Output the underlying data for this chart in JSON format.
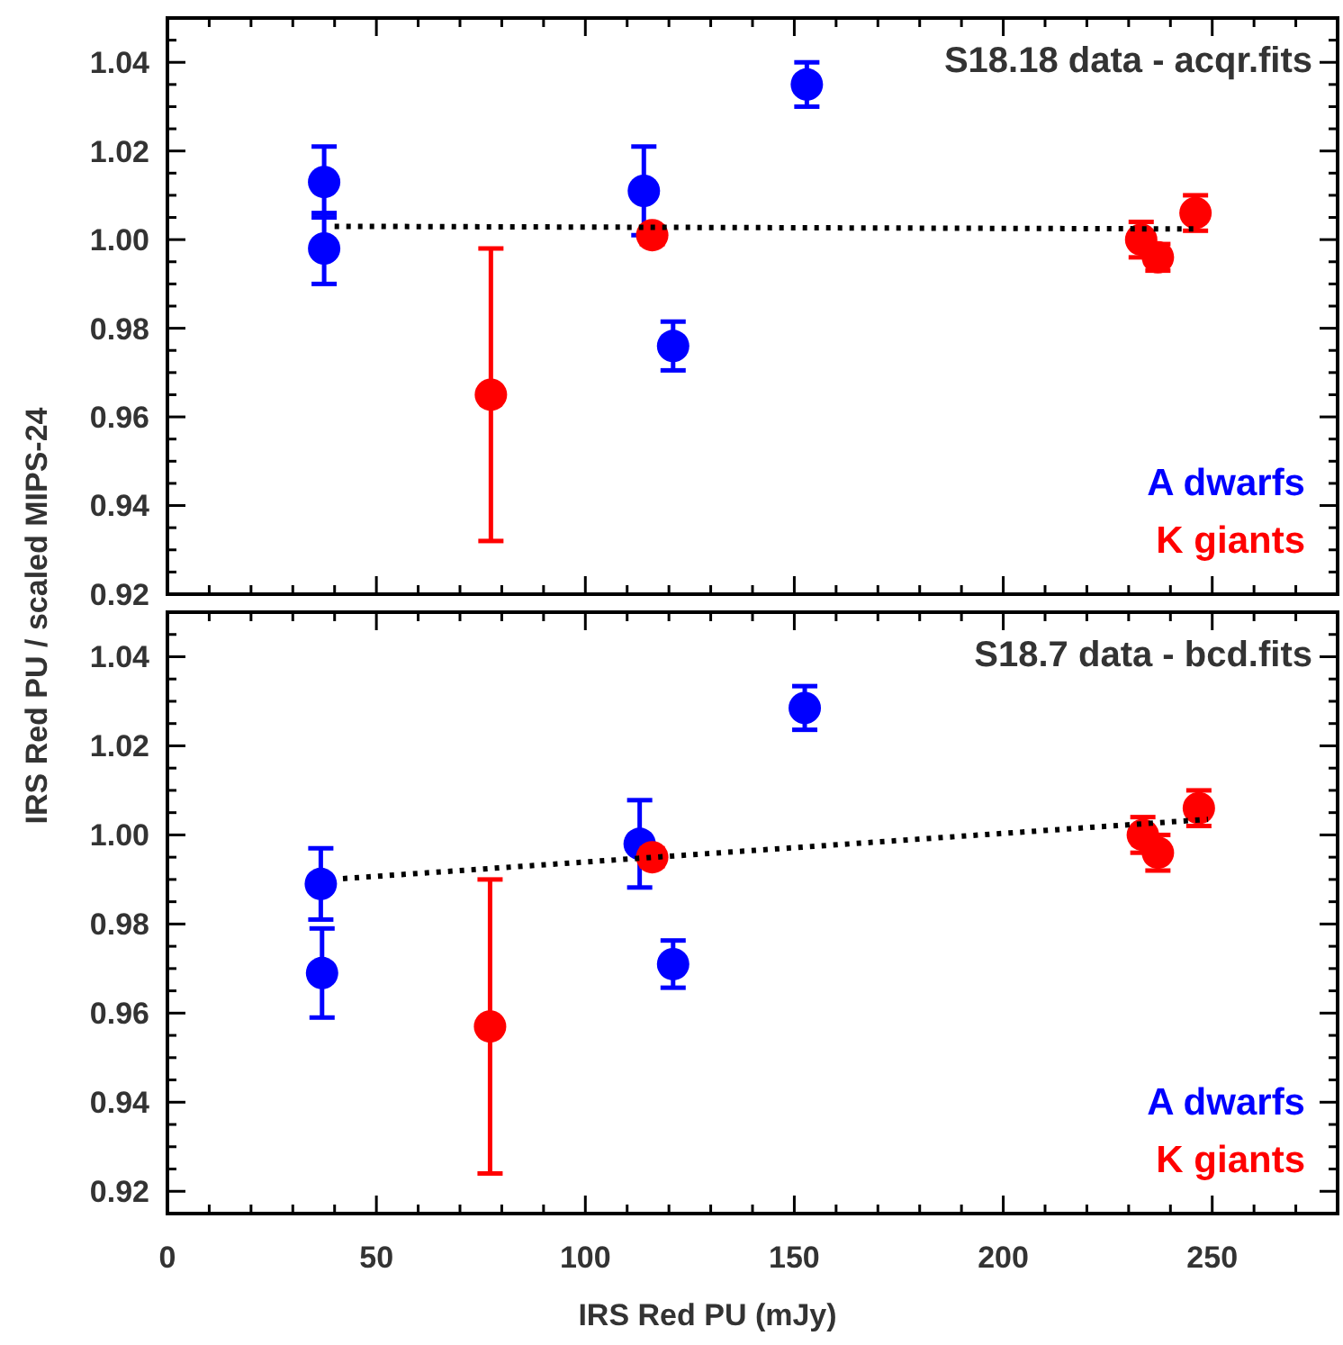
{
  "chart_data": [
    {
      "type": "scatter",
      "title": "S18.18 data - acqr.fits",
      "ylabel": "IRS Red PU / scaled MIPS-24",
      "legend": "bottom right",
      "tick_labels": "y",
      "marker": "circle",
      "xlim": [
        0,
        280
      ],
      "ylim": [
        0.92,
        1.05
      ],
      "xticks": [
        0,
        {
          "value": 10,
          "label": null
        },
        {
          "value": 20,
          "label": null
        },
        {
          "value": 30,
          "label": null
        },
        {
          "value": 40,
          "label": null
        },
        50,
        {
          "value": 60,
          "label": null
        },
        {
          "value": 70,
          "label": null
        },
        {
          "value": 80,
          "label": null
        },
        {
          "value": 90,
          "label": null
        },
        100,
        {
          "value": 110,
          "label": null
        },
        {
          "value": 120,
          "label": null
        },
        {
          "value": 130,
          "label": null
        },
        {
          "value": 140,
          "label": null
        },
        150,
        {
          "value": 160,
          "label": null
        },
        {
          "value": 170,
          "label": null
        },
        {
          "value": 180,
          "label": null
        },
        {
          "value": 190,
          "label": null
        },
        200,
        {
          "value": 210,
          "label": null
        },
        {
          "value": 220,
          "label": null
        },
        {
          "value": 230,
          "label": null
        },
        {
          "value": 240,
          "label": null
        },
        250,
        {
          "value": 260,
          "label": null
        },
        {
          "value": 270,
          "label": null
        }
      ],
      "yticks": [
        0.92,
        {
          "value": 0.925,
          "label": null
        },
        {
          "value": 0.93,
          "label": null
        },
        {
          "value": 0.935,
          "label": null
        },
        0.94,
        {
          "value": 0.945,
          "label": null
        },
        {
          "value": 0.95,
          "label": null
        },
        {
          "value": 0.955,
          "label": null
        },
        0.96,
        {
          "value": 0.965,
          "label": null
        },
        {
          "value": 0.97,
          "label": null
        },
        {
          "value": 0.975,
          "label": null
        },
        0.98,
        {
          "value": 0.985,
          "label": null
        },
        {
          "value": 0.99,
          "label": null
        },
        {
          "value": 0.995,
          "label": null
        },
        {
          "value": 1,
          "label": "1.00"
        },
        {
          "value": 1.005,
          "label": null
        },
        {
          "value": 1.01,
          "label": null
        },
        {
          "value": 1.015,
          "label": null
        },
        1.02,
        {
          "value": 1.025,
          "label": null
        },
        {
          "value": 1.03,
          "label": null
        },
        {
          "value": 1.035,
          "label": null
        },
        1.04,
        {
          "value": 1.045,
          "label": null
        }
      ],
      "series": [
        {
          "type": "line",
          "color": "#000000",
          "marker": "none",
          "line_style": "dotted",
          "x": [
            40,
            246
          ],
          "values": [
            1.003,
            1.0024
          ]
        },
        {
          "name": "A dwarfs",
          "color": "#0000ff",
          "x": [
            37.5,
            37.5,
            114,
            121,
            153
          ],
          "values": [
            1.013,
            0.998,
            1.011,
            0.976,
            1.035
          ],
          "errors": [
            0.008,
            0.008,
            0.01,
            0.0055,
            0.005
          ]
        },
        {
          "name": "K giants",
          "color": "#ff0000",
          "x": [
            77.4,
            116,
            233,
            237,
            246
          ],
          "values": [
            0.965,
            1.001,
            1.0,
            0.996,
            1.006
          ],
          "errors": [
            0.033,
            0.002,
            0.004,
            0.003,
            0.004
          ]
        }
      ]
    },
    {
      "type": "scatter",
      "title": "S18.7 data - bcd.fits",
      "xlabel": "IRS Red PU (mJy)",
      "legend": "bottom right",
      "marker": "circle",
      "xlim": [
        0,
        280
      ],
      "ylim": [
        0.915,
        1.05
      ],
      "xticks": [
        0,
        {
          "value": 10,
          "label": null
        },
        {
          "value": 20,
          "label": null
        },
        {
          "value": 30,
          "label": null
        },
        {
          "value": 40,
          "label": null
        },
        50,
        {
          "value": 60,
          "label": null
        },
        {
          "value": 70,
          "label": null
        },
        {
          "value": 80,
          "label": null
        },
        {
          "value": 90,
          "label": null
        },
        100,
        {
          "value": 110,
          "label": null
        },
        {
          "value": 120,
          "label": null
        },
        {
          "value": 130,
          "label": null
        },
        {
          "value": 140,
          "label": null
        },
        150,
        {
          "value": 160,
          "label": null
        },
        {
          "value": 170,
          "label": null
        },
        {
          "value": 180,
          "label": null
        },
        {
          "value": 190,
          "label": null
        },
        200,
        {
          "value": 210,
          "label": null
        },
        {
          "value": 220,
          "label": null
        },
        {
          "value": 230,
          "label": null
        },
        {
          "value": 240,
          "label": null
        },
        250,
        {
          "value": 260,
          "label": null
        },
        {
          "value": 270,
          "label": null
        }
      ],
      "yticks": [
        0.92,
        {
          "value": 0.925,
          "label": null
        },
        {
          "value": 0.93,
          "label": null
        },
        {
          "value": 0.935,
          "label": null
        },
        0.94,
        {
          "value": 0.945,
          "label": null
        },
        {
          "value": 0.95,
          "label": null
        },
        {
          "value": 0.955,
          "label": null
        },
        0.96,
        {
          "value": 0.965,
          "label": null
        },
        {
          "value": 0.97,
          "label": null
        },
        {
          "value": 0.975,
          "label": null
        },
        0.98,
        {
          "value": 0.985,
          "label": null
        },
        {
          "value": 0.99,
          "label": null
        },
        {
          "value": 0.995,
          "label": null
        },
        {
          "value": 1,
          "label": "1.00"
        },
        {
          "value": 1.005,
          "label": null
        },
        {
          "value": 1.01,
          "label": null
        },
        {
          "value": 1.015,
          "label": null
        },
        1.02,
        {
          "value": 1.025,
          "label": null
        },
        {
          "value": 1.03,
          "label": null
        },
        {
          "value": 1.035,
          "label": null
        },
        1.04,
        {
          "value": 1.045,
          "label": null
        }
      ],
      "series": [
        {
          "type": "line",
          "color": "#000000",
          "marker": "none",
          "line_style": "dotted",
          "x": [
            42,
            249
          ],
          "values": [
            0.9902,
            1.0035
          ]
        },
        {
          "name": "A dwarfs",
          "color": "#0000ff",
          "x": [
            36.7,
            37,
            113,
            121,
            152.5
          ],
          "values": [
            0.989,
            0.969,
            0.998,
            0.971,
            1.0285
          ],
          "errors": [
            0.008,
            0.01,
            0.0098,
            0.0053,
            0.0049
          ]
        },
        {
          "name": "K giants",
          "color": "#ff0000",
          "x": [
            77.2,
            116,
            233.4,
            237,
            246.8
          ],
          "values": [
            0.957,
            0.995,
            1.0,
            0.996,
            1.006
          ],
          "errors": [
            0.033,
            0.002,
            0.004,
            0.004,
            0.004
          ]
        }
      ]
    }
  ]
}
